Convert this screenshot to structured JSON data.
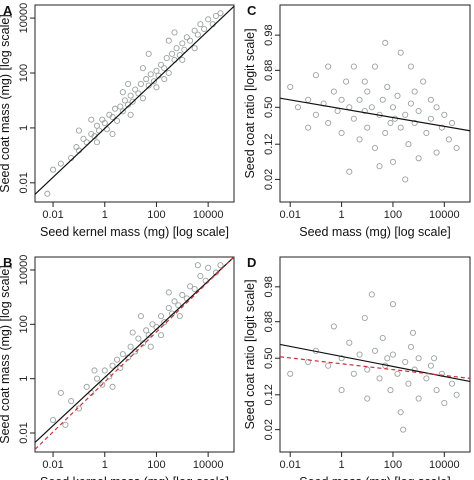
{
  "chart_data": [
    {
      "panel": "A",
      "type": "scatter",
      "xlabel": "Seed kernel mass (mg) [log scale]",
      "ylabel": "Seed coat mass (mg) [log scale]",
      "x_scale": "log10",
      "y_scale": "log10",
      "xlim": [
        0.002,
        100000
      ],
      "ylim": [
        0.002,
        30000
      ],
      "x_ticks": [
        0.01,
        1,
        100,
        10000
      ],
      "x_tick_labels": [
        "0.01",
        "1",
        "100",
        "10000"
      ],
      "y_ticks": [
        0.01,
        1,
        100,
        10000
      ],
      "y_tick_labels": [
        "0.01",
        "1",
        "100",
        "10000"
      ],
      "point_color": "#9aa3a0",
      "points": [
        [
          0.006,
          0.004
        ],
        [
          0.01,
          0.03
        ],
        [
          0.02,
          0.05
        ],
        [
          0.05,
          0.08
        ],
        [
          0.08,
          0.2
        ],
        [
          0.1,
          0.15
        ],
        [
          0.15,
          0.4
        ],
        [
          0.2,
          0.3
        ],
        [
          0.3,
          0.6
        ],
        [
          0.4,
          0.5
        ],
        [
          0.5,
          1.2
        ],
        [
          0.6,
          0.8
        ],
        [
          0.8,
          2
        ],
        [
          1,
          1.5
        ],
        [
          1.2,
          0.9
        ],
        [
          1.5,
          3
        ],
        [
          2,
          2.5
        ],
        [
          2.5,
          5
        ],
        [
          3,
          1.8
        ],
        [
          4,
          6
        ],
        [
          5,
          4
        ],
        [
          6,
          10
        ],
        [
          8,
          7
        ],
        [
          10,
          15
        ],
        [
          12,
          9
        ],
        [
          15,
          25
        ],
        [
          20,
          18
        ],
        [
          25,
          40
        ],
        [
          30,
          12
        ],
        [
          40,
          60
        ],
        [
          50,
          35
        ],
        [
          60,
          90
        ],
        [
          80,
          50
        ],
        [
          100,
          120
        ],
        [
          120,
          80
        ],
        [
          150,
          200
        ],
        [
          200,
          150
        ],
        [
          250,
          350
        ],
        [
          300,
          100
        ],
        [
          400,
          500
        ],
        [
          500,
          300
        ],
        [
          600,
          800
        ],
        [
          800,
          450
        ],
        [
          1000,
          1200
        ],
        [
          1200,
          700
        ],
        [
          1500,
          2000
        ],
        [
          2000,
          1500
        ],
        [
          3000,
          3500
        ],
        [
          4000,
          2500
        ],
        [
          5000,
          6000
        ],
        [
          7000,
          4000
        ],
        [
          10000,
          9000
        ],
        [
          15000,
          6000
        ],
        [
          20000,
          12000
        ],
        [
          30000,
          15000
        ],
        [
          2,
          0.6
        ],
        [
          5,
          20
        ],
        [
          10,
          3
        ],
        [
          30,
          150
        ],
        [
          100,
          30
        ],
        [
          300,
          1500
        ],
        [
          1000,
          300
        ],
        [
          3000,
          800
        ],
        [
          0.3,
          2
        ],
        [
          0.1,
          0.8
        ],
        [
          50,
          500
        ],
        [
          500,
          3000
        ],
        [
          0.5,
          0.3
        ],
        [
          8,
          40
        ],
        [
          200,
          60
        ]
      ],
      "lines": [
        {
          "style": "solid",
          "color": "#111111",
          "points": [
            [
              0.002,
              0.0038
            ],
            [
              100000,
              27000
            ]
          ]
        }
      ]
    },
    {
      "panel": "B",
      "type": "scatter",
      "xlabel": "Seed kernel mass (mg) [log scale]",
      "ylabel": "Seed coat mass (mg) [log scale]",
      "x_scale": "log10",
      "y_scale": "log10",
      "xlim": [
        0.002,
        100000
      ],
      "ylim": [
        0.002,
        30000
      ],
      "x_ticks": [
        0.01,
        1,
        100,
        10000
      ],
      "x_tick_labels": [
        "0.01",
        "1",
        "100",
        "10000"
      ],
      "y_ticks": [
        0.01,
        1,
        100,
        10000
      ],
      "y_tick_labels": [
        "0.01",
        "1",
        "100",
        "10000"
      ],
      "point_color": "#9aa3a0",
      "points": [
        [
          0.01,
          0.03
        ],
        [
          0.03,
          0.02
        ],
        [
          0.05,
          0.15
        ],
        [
          0.1,
          0.08
        ],
        [
          0.2,
          0.5
        ],
        [
          0.3,
          0.3
        ],
        [
          0.5,
          1
        ],
        [
          0.8,
          0.6
        ],
        [
          1,
          2
        ],
        [
          1.5,
          1.2
        ],
        [
          2,
          3
        ],
        [
          3,
          5
        ],
        [
          4,
          2.5
        ],
        [
          5,
          8
        ],
        [
          8,
          6
        ],
        [
          10,
          15
        ],
        [
          15,
          10
        ],
        [
          20,
          30
        ],
        [
          30,
          20
        ],
        [
          40,
          60
        ],
        [
          50,
          40
        ],
        [
          70,
          100
        ],
        [
          100,
          80
        ],
        [
          150,
          200
        ],
        [
          200,
          120
        ],
        [
          300,
          400
        ],
        [
          400,
          250
        ],
        [
          500,
          700
        ],
        [
          700,
          500
        ],
        [
          1000,
          1200
        ],
        [
          1500,
          900
        ],
        [
          2000,
          2500
        ],
        [
          3000,
          2000
        ],
        [
          5000,
          6000
        ],
        [
          8000,
          4000
        ],
        [
          10000,
          12000
        ],
        [
          20000,
          8000
        ],
        [
          30000,
          15000
        ],
        [
          0.4,
          2
        ],
        [
          2,
          0.5
        ],
        [
          25,
          200
        ],
        [
          60,
          15
        ],
        [
          300,
          1500
        ],
        [
          800,
          200
        ],
        [
          4000,
          15000
        ],
        [
          0.02,
          0.3
        ],
        [
          12,
          50
        ],
        [
          150,
          40
        ]
      ],
      "lines": [
        {
          "style": "solid",
          "color": "#111111",
          "points": [
            [
              0.002,
              0.0045
            ],
            [
              100000,
              30000
            ]
          ]
        },
        {
          "style": "dashed",
          "color": "#c8323c",
          "points": [
            [
              0.002,
              0.0025
            ],
            [
              100000,
              30000
            ]
          ]
        }
      ]
    },
    {
      "panel": "C",
      "type": "scatter",
      "xlabel": "Seed mass (mg) [log scale]",
      "ylabel": "Seed coat ratio [logit scale]",
      "x_scale": "log10",
      "y_scale": "logit",
      "xlim": [
        0.004,
        100000
      ],
      "ylim": [
        0.006,
        0.996
      ],
      "x_ticks": [
        0.01,
        1,
        100,
        10000
      ],
      "x_tick_labels": [
        "0.01",
        "1",
        "100",
        "10000"
      ],
      "y_ticks": [
        0.02,
        0.12,
        0.5,
        0.88,
        0.98
      ],
      "y_tick_labels": [
        "0.02",
        "0.12",
        "0.50",
        "0.88",
        "0.98"
      ],
      "point_color": "#9aa3a0",
      "points": [
        [
          0.01,
          0.75
        ],
        [
          0.02,
          0.5
        ],
        [
          0.05,
          0.6
        ],
        [
          0.1,
          0.4
        ],
        [
          0.1,
          0.85
        ],
        [
          0.2,
          0.55
        ],
        [
          0.3,
          0.3
        ],
        [
          0.5,
          0.7
        ],
        [
          0.7,
          0.45
        ],
        [
          1,
          0.6
        ],
        [
          1,
          0.2
        ],
        [
          1.5,
          0.8
        ],
        [
          2,
          0.5
        ],
        [
          3,
          0.35
        ],
        [
          3,
          0.9
        ],
        [
          5,
          0.6
        ],
        [
          5,
          0.15
        ],
        [
          8,
          0.45
        ],
        [
          10,
          0.7
        ],
        [
          10,
          0.25
        ],
        [
          15,
          0.5
        ],
        [
          20,
          0.9
        ],
        [
          20,
          0.1
        ],
        [
          30,
          0.4
        ],
        [
          40,
          0.6
        ],
        [
          50,
          0.2
        ],
        [
          60,
          0.75
        ],
        [
          80,
          0.3
        ],
        [
          100,
          0.5
        ],
        [
          100,
          0.05
        ],
        [
          150,
          0.65
        ],
        [
          200,
          0.25
        ],
        [
          200,
          0.95
        ],
        [
          300,
          0.4
        ],
        [
          400,
          0.12
        ],
        [
          500,
          0.55
        ],
        [
          700,
          0.3
        ],
        [
          1000,
          0.45
        ],
        [
          1000,
          0.06
        ],
        [
          1500,
          0.8
        ],
        [
          2000,
          0.2
        ],
        [
          3000,
          0.35
        ],
        [
          5000,
          0.5
        ],
        [
          5000,
          0.08
        ],
        [
          8000,
          0.25
        ],
        [
          10000,
          0.4
        ],
        [
          15000,
          0.15
        ],
        [
          20000,
          0.3
        ],
        [
          30000,
          0.1
        ],
        [
          0.3,
          0.9
        ],
        [
          2,
          0.03
        ],
        [
          30,
          0.04
        ],
        [
          300,
          0.02
        ],
        [
          50,
          0.97
        ],
        [
          500,
          0.9
        ],
        [
          0.05,
          0.25
        ],
        [
          8,
          0.8
        ],
        [
          120,
          0.35
        ],
        [
          700,
          0.7
        ],
        [
          3000,
          0.6
        ]
      ],
      "lines": [
        {
          "style": "solid",
          "color": "#111111",
          "points": [
            [
              0.004,
              0.62
            ],
            [
              100000,
              0.22
            ]
          ]
        }
      ]
    },
    {
      "panel": "D",
      "type": "scatter",
      "xlabel": "Seed mass (mg) [log scale]",
      "ylabel": "Seed coat ratio [logit scale]",
      "x_scale": "log10",
      "y_scale": "logit",
      "xlim": [
        0.004,
        100000
      ],
      "ylim": [
        0.006,
        0.996
      ],
      "x_ticks": [
        0.01,
        1,
        100,
        10000
      ],
      "x_tick_labels": [
        "0.01",
        "1",
        "100",
        "10000"
      ],
      "y_ticks": [
        0.02,
        0.12,
        0.5,
        0.88,
        0.98
      ],
      "y_tick_labels": [
        "0.02",
        "0.12",
        "0.50",
        "0.88",
        "0.98"
      ],
      "point_color": "#9aa3a0",
      "points": [
        [
          0.01,
          0.3
        ],
        [
          0.1,
          0.6
        ],
        [
          0.3,
          0.4
        ],
        [
          0.5,
          0.85
        ],
        [
          1,
          0.5
        ],
        [
          1,
          0.15
        ],
        [
          2,
          0.7
        ],
        [
          3,
          0.3
        ],
        [
          5,
          0.55
        ],
        [
          8,
          0.9
        ],
        [
          10,
          0.35
        ],
        [
          10,
          0.1
        ],
        [
          20,
          0.6
        ],
        [
          30,
          0.25
        ],
        [
          40,
          0.75
        ],
        [
          50,
          0.4
        ],
        [
          80,
          0.15
        ],
        [
          100,
          0.55
        ],
        [
          100,
          0.95
        ],
        [
          150,
          0.3
        ],
        [
          200,
          0.05
        ],
        [
          300,
          0.45
        ],
        [
          400,
          0.2
        ],
        [
          500,
          0.65
        ],
        [
          700,
          0.35
        ],
        [
          1000,
          0.1
        ],
        [
          1000,
          0.5
        ],
        [
          2000,
          0.25
        ],
        [
          3000,
          0.4
        ],
        [
          5000,
          0.15
        ],
        [
          8000,
          0.3
        ],
        [
          10000,
          0.08
        ],
        [
          20000,
          0.2
        ],
        [
          30000,
          0.12
        ],
        [
          0.05,
          0.45
        ],
        [
          15,
          0.97
        ],
        [
          250,
          0.02
        ],
        [
          60,
          0.5
        ],
        [
          600,
          0.8
        ],
        [
          4000,
          0.5
        ]
      ],
      "lines": [
        {
          "style": "solid",
          "color": "#111111",
          "points": [
            [
              0.004,
              0.68
            ],
            [
              100000,
              0.22
            ]
          ]
        },
        {
          "style": "dashed",
          "color": "#c8323c",
          "points": [
            [
              0.004,
              0.52
            ],
            [
              100000,
              0.25
            ]
          ]
        }
      ]
    }
  ]
}
